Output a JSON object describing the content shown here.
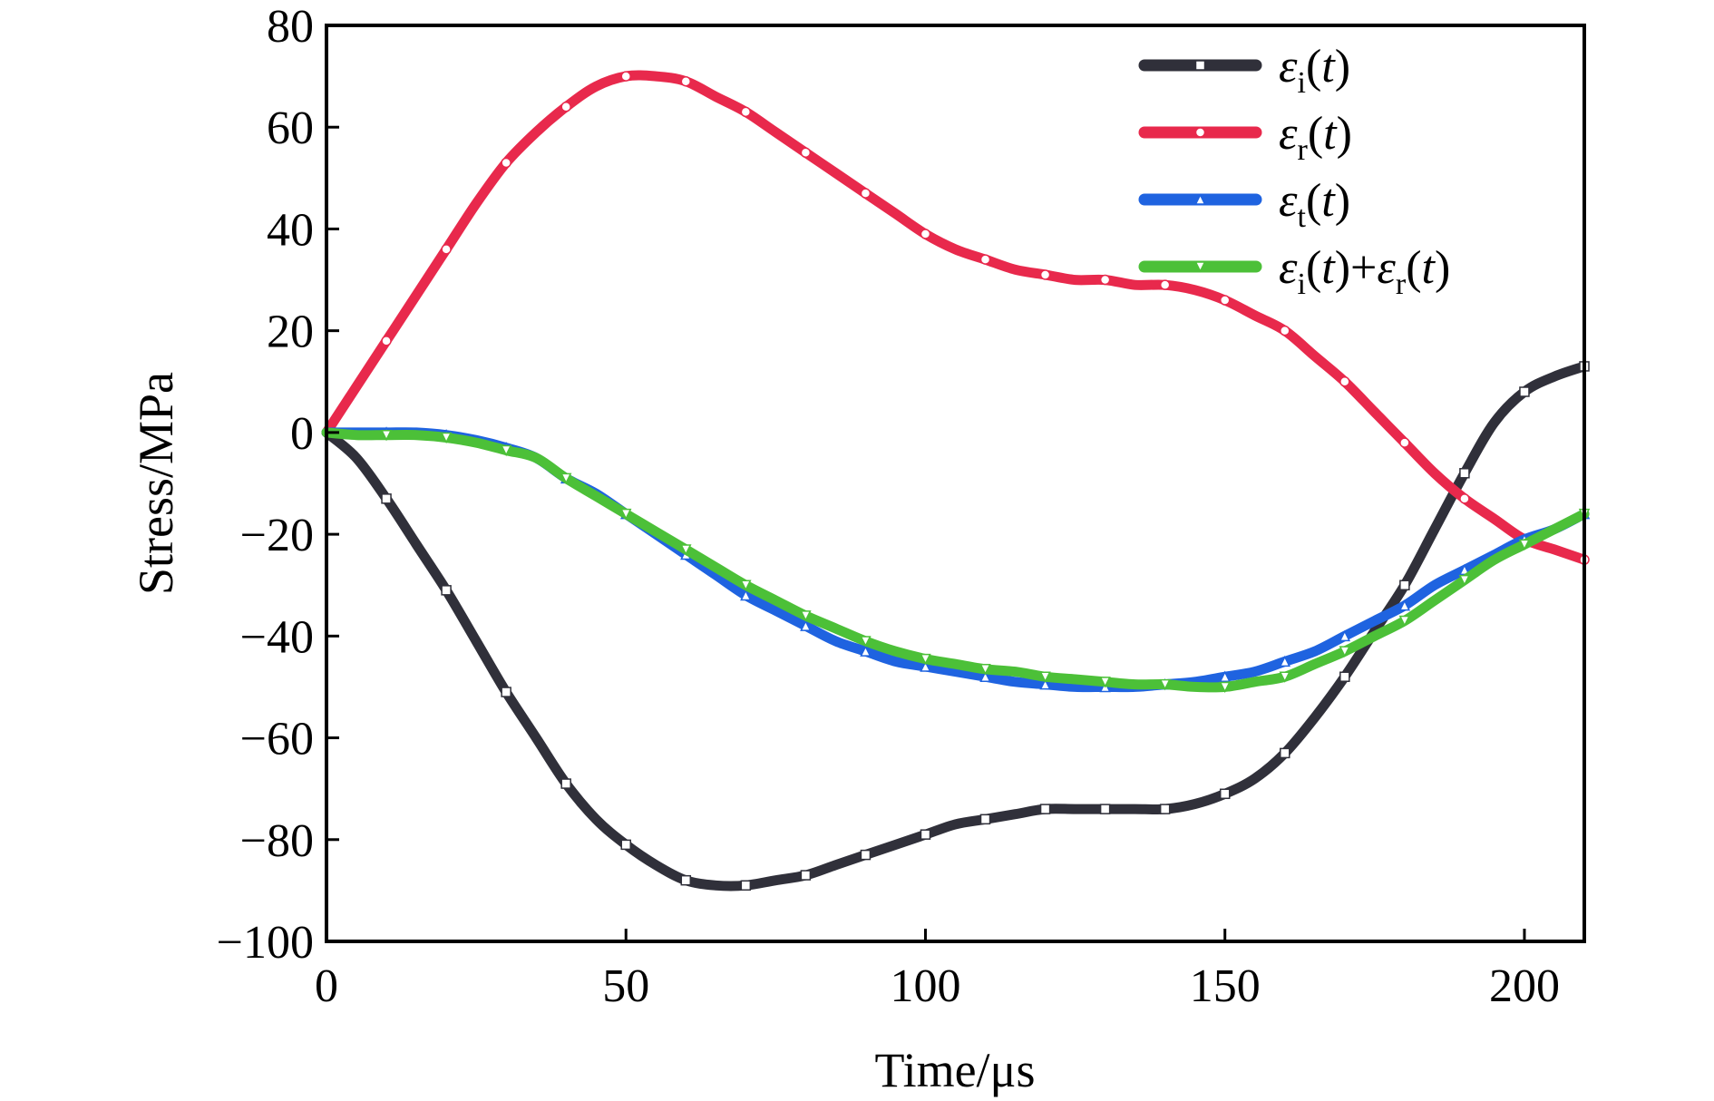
{
  "chart_data": {
    "type": "line",
    "xlabel": "Time/μs",
    "ylabel": "Stress/MPa",
    "xlim": [
      0,
      210
    ],
    "ylim": [
      -100,
      80
    ],
    "xticks": [
      0,
      50,
      100,
      150,
      200
    ],
    "yticks": [
      80,
      60,
      40,
      20,
      0,
      -20,
      -40,
      -60,
      -80,
      -100
    ],
    "ytick_labels": [
      "80",
      "60",
      "40",
      "20",
      "0",
      "−20",
      "−40",
      "−60",
      "−80",
      "−100"
    ],
    "grid": false,
    "legend_position": "top-right",
    "series": [
      {
        "key": "ei",
        "legend_parts": [
          [
            "ε",
            "it"
          ],
          [
            "i",
            "sub"
          ],
          [
            "(",
            ""
          ],
          [
            "t",
            "it"
          ],
          [
            ")",
            ""
          ]
        ],
        "color": "#30303a",
        "marker": "square",
        "x": [
          0,
          5,
          10,
          15,
          20,
          25,
          30,
          35,
          40,
          45,
          50,
          55,
          60,
          65,
          70,
          75,
          80,
          85,
          90,
          95,
          100,
          105,
          110,
          115,
          120,
          125,
          130,
          135,
          140,
          145,
          150,
          155,
          160,
          165,
          170,
          175,
          180,
          185,
          190,
          195,
          200,
          205,
          210
        ],
        "y": [
          0,
          -5,
          -13,
          -22,
          -31,
          -41,
          -51,
          -60,
          -69,
          -76,
          -81,
          -85,
          -88,
          -89,
          -89,
          -88,
          -87,
          -85,
          -83,
          -81,
          -79,
          -77,
          -76,
          -75,
          -74,
          -74,
          -74,
          -74,
          -74,
          -73,
          -71,
          -68,
          -63,
          -56,
          -48,
          -39,
          -30,
          -19,
          -8,
          2,
          8,
          11,
          13
        ]
      },
      {
        "key": "er",
        "legend_parts": [
          [
            "ε",
            "it"
          ],
          [
            "r",
            "sub"
          ],
          [
            "(",
            ""
          ],
          [
            "t",
            "it"
          ],
          [
            ")",
            ""
          ]
        ],
        "color": "#e8294c",
        "marker": "circle",
        "x": [
          0,
          5,
          10,
          15,
          20,
          25,
          30,
          35,
          40,
          45,
          50,
          55,
          60,
          65,
          70,
          75,
          80,
          85,
          90,
          95,
          100,
          105,
          110,
          115,
          120,
          125,
          130,
          135,
          140,
          145,
          150,
          155,
          160,
          165,
          170,
          175,
          180,
          185,
          190,
          195,
          200,
          205,
          210
        ],
        "y": [
          0,
          9,
          18,
          27,
          36,
          45,
          53,
          59,
          64,
          68,
          70,
          70,
          69,
          66,
          63,
          59,
          55,
          51,
          47,
          43,
          39,
          36,
          34,
          32,
          31,
          30,
          30,
          29,
          29,
          28,
          26,
          23,
          20,
          15,
          10,
          4,
          -2,
          -8,
          -13,
          -17,
          -21,
          -23,
          -25
        ]
      },
      {
        "key": "et",
        "legend_parts": [
          [
            "ε",
            "it"
          ],
          [
            "t",
            "sub"
          ],
          [
            "(",
            ""
          ],
          [
            "t",
            "it"
          ],
          [
            ")",
            ""
          ]
        ],
        "color": "#1f63e0",
        "marker": "triangle-up",
        "x": [
          0,
          5,
          10,
          15,
          20,
          25,
          30,
          35,
          40,
          45,
          50,
          55,
          60,
          65,
          70,
          75,
          80,
          85,
          90,
          95,
          100,
          105,
          110,
          115,
          120,
          125,
          130,
          135,
          140,
          145,
          150,
          155,
          160,
          165,
          170,
          175,
          180,
          185,
          190,
          195,
          200,
          205,
          210
        ],
        "y": [
          0,
          0,
          0,
          0,
          -0.5,
          -1.5,
          -3,
          -5,
          -9,
          -12,
          -16,
          -20,
          -24,
          -28,
          -32,
          -35,
          -38,
          -41,
          -43,
          -45,
          -46,
          -47,
          -48,
          -49,
          -49.5,
          -50,
          -50,
          -50,
          -49.5,
          -49,
          -48,
          -47,
          -45,
          -43,
          -40,
          -37,
          -34,
          -30,
          -27,
          -24,
          -21,
          -19,
          -16
        ]
      },
      {
        "key": "sum",
        "legend_parts": [
          [
            "ε",
            "it"
          ],
          [
            "i",
            "sub"
          ],
          [
            "(",
            ""
          ],
          [
            "t",
            "it"
          ],
          [
            ")+",
            ""
          ],
          [
            "ε",
            "it"
          ],
          [
            "r",
            "sub"
          ],
          [
            "(",
            ""
          ],
          [
            "t",
            "it"
          ],
          [
            ")",
            ""
          ]
        ],
        "color": "#4cc038",
        "marker": "triangle-down",
        "x": [
          0,
          5,
          10,
          15,
          20,
          25,
          30,
          35,
          40,
          45,
          50,
          55,
          60,
          65,
          70,
          75,
          80,
          85,
          90,
          95,
          100,
          105,
          110,
          115,
          120,
          125,
          130,
          135,
          140,
          145,
          150,
          155,
          160,
          165,
          170,
          175,
          180,
          185,
          190,
          195,
          200,
          205,
          210
        ],
        "y": [
          0,
          -0.5,
          -0.5,
          -0.5,
          -1,
          -2,
          -3.5,
          -5,
          -9,
          -12.5,
          -16,
          -19.5,
          -23,
          -26.5,
          -30,
          -33,
          -36,
          -38.5,
          -41,
          -43,
          -44.5,
          -45.5,
          -46.5,
          -47,
          -48,
          -48.5,
          -49,
          -49.5,
          -49.5,
          -50,
          -50,
          -49,
          -48,
          -45.5,
          -43,
          -40,
          -37,
          -33,
          -29,
          -25,
          -22,
          -19,
          -16
        ]
      }
    ]
  }
}
